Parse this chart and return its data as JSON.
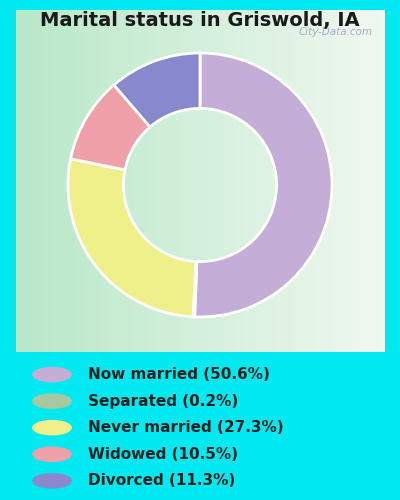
{
  "title": "Marital status in Griswold, IA",
  "slices": [
    50.6,
    0.2,
    27.3,
    10.5,
    11.3
  ],
  "labels": [
    "Now married (50.6%)",
    "Separated (0.2%)",
    "Never married (27.3%)",
    "Widowed (10.5%)",
    "Divorced (11.3%)"
  ],
  "colors": [
    "#c4aed8",
    "#a8c8a0",
    "#f0f08a",
    "#f0a0a8",
    "#8888cc"
  ],
  "legend_colors": [
    "#c4aed8",
    "#a8c8a0",
    "#f0f08a",
    "#f0a0a8",
    "#8888cc"
  ],
  "bg_color_outer": "#00e8f0",
  "bg_color_chart_grad_left": "#b8e8c8",
  "bg_color_chart_grad_right": "#f0f8f0",
  "title_fontsize": 14,
  "legend_fontsize": 11,
  "watermark": "City-Data.com"
}
